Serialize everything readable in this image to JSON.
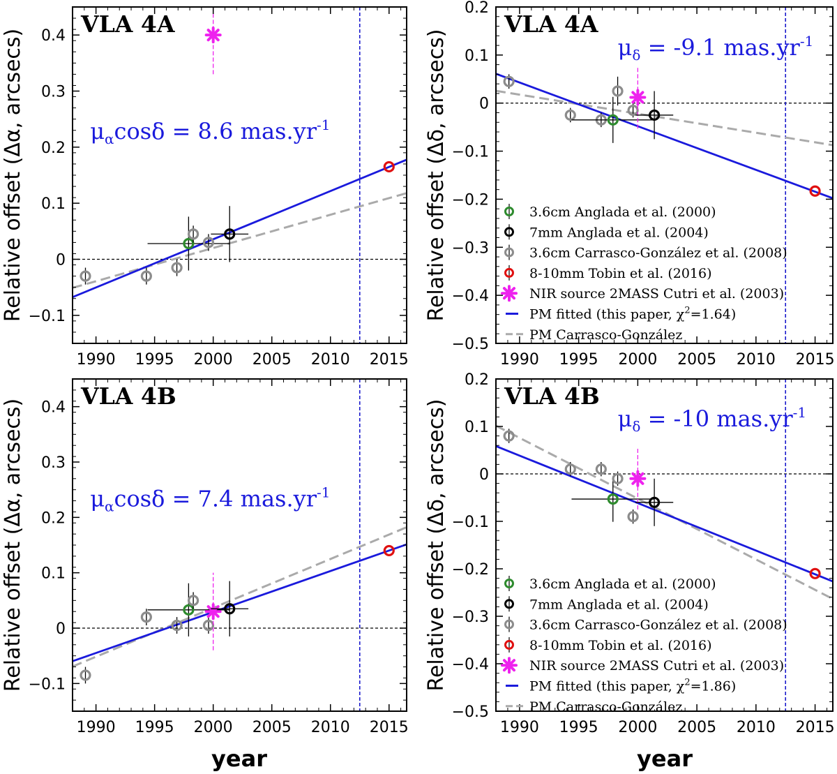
{
  "figure": {
    "shared_xlabel": "year",
    "colors": {
      "fit_line": "#1a1adc",
      "cg_line": "#aaaaaa",
      "epoch_line": "#1a1acc",
      "anglada2000": "#2e8b2e",
      "anglada2004": "#000000",
      "carrasco2008": "#8c8c8c",
      "tobin2016": "#e01010",
      "nir2mass": "#ee22ee",
      "zero_line": "#000000"
    }
  },
  "chart_data": [
    {
      "type": "scatter",
      "panel": "top-left",
      "title": "VLA 4A",
      "ylabel": "Relative offset (Δα, arcsecs)",
      "xlabel": "",
      "xlim": [
        1988,
        2016.5
      ],
      "ylim": [
        -0.15,
        0.45
      ],
      "xticks": [
        1990,
        1995,
        2000,
        2005,
        2010,
        2015
      ],
      "yticks": [
        -0.1,
        0,
        0.1,
        0.2,
        0.3,
        0.4
      ],
      "ytick_labels": [
        "−0.1",
        "0",
        "0.1",
        "0.2",
        "0.3",
        "0.4"
      ],
      "pm_label": {
        "main": "μ",
        "sub": "α",
        "rest": "cosδ = 8.6 mas.yr",
        "sup": "-1"
      },
      "pm_label_pos": [
        1989.5,
        0.215
      ],
      "fit_line": {
        "x": [
          1988,
          2016.5
        ],
        "y": [
          -0.0675,
          0.1776
        ]
      },
      "cg_line": {
        "x": [
          1988,
          2016.5
        ],
        "y": [
          -0.051,
          0.118
        ]
      },
      "epoch_line": 2012.5,
      "points": [
        {
          "series": "carrasco2008",
          "x": 1989.1,
          "y": -0.03,
          "xerr": 0,
          "yerr": 0.015
        },
        {
          "series": "carrasco2008",
          "x": 1994.3,
          "y": -0.03,
          "xerr": 0,
          "yerr": 0.015
        },
        {
          "series": "carrasco2008",
          "x": 1996.9,
          "y": -0.015,
          "xerr": 0,
          "yerr": 0.015
        },
        {
          "series": "anglada2000",
          "x": 1997.9,
          "y": 0.028,
          "xerr": 3.5,
          "yerr": 0.048
        },
        {
          "series": "carrasco2008",
          "x": 1998.3,
          "y": 0.045,
          "xerr": 0,
          "yerr": 0.015
        },
        {
          "series": "carrasco2008",
          "x": 1999.6,
          "y": 0.03,
          "xerr": 0,
          "yerr": 0.015
        },
        {
          "series": "anglada2004",
          "x": 2001.4,
          "y": 0.045,
          "xerr": 1.6,
          "yerr": 0.05
        },
        {
          "series": "tobin2016",
          "x": 2015.0,
          "y": 0.165,
          "xerr": 0,
          "yerr": 0
        },
        {
          "series": "nir2mass",
          "x": 2000.0,
          "y": 0.4,
          "xerr": 0,
          "yerr": 0.07
        }
      ]
    },
    {
      "type": "scatter",
      "panel": "top-right",
      "title": "VLA 4A",
      "ylabel": "Relative offset (Δδ, arcsecs)",
      "xlabel": "",
      "xlim": [
        1988,
        2016.5
      ],
      "ylim": [
        -0.5,
        0.2
      ],
      "xticks": [
        1990,
        1995,
        2000,
        2005,
        2010,
        2015
      ],
      "yticks": [
        -0.5,
        -0.4,
        -0.3,
        -0.2,
        -0.1,
        0,
        0.1,
        0.2
      ],
      "ytick_labels": [
        "−0.5",
        "−0.4",
        "−0.3",
        "−0.2",
        "−0.1",
        "0",
        "0.1",
        "0.2"
      ],
      "pm_label": {
        "main": "μ",
        "sub": "δ",
        "rest": " = -9.1 mas.yr",
        "sup": "-1"
      },
      "pm_label_pos": [
        1998.3,
        0.1
      ],
      "fit_line": {
        "x": [
          1988,
          2016.5
        ],
        "y": [
          0.061,
          -0.198
        ]
      },
      "cg_line": {
        "x": [
          1988,
          2016.5
        ],
        "y": [
          0.0255,
          -0.0875
        ]
      },
      "epoch_line": 2012.5,
      "points": [
        {
          "series": "carrasco2008",
          "x": 1989.1,
          "y": 0.045,
          "xerr": 0,
          "yerr": 0.015
        },
        {
          "series": "carrasco2008",
          "x": 1994.3,
          "y": -0.025,
          "xerr": 0,
          "yerr": 0.015
        },
        {
          "series": "carrasco2008",
          "x": 1996.9,
          "y": -0.035,
          "xerr": 0,
          "yerr": 0.015
        },
        {
          "series": "anglada2000",
          "x": 1997.9,
          "y": -0.035,
          "xerr": 3.5,
          "yerr": 0.048
        },
        {
          "series": "carrasco2008",
          "x": 1998.3,
          "y": 0.025,
          "xerr": 0,
          "yerr": 0.03
        },
        {
          "series": "carrasco2008",
          "x": 1999.6,
          "y": -0.015,
          "xerr": 0,
          "yerr": 0.015
        },
        {
          "series": "nir2mass",
          "x": 2000.0,
          "y": 0.012,
          "xerr": 0,
          "yerr": 0.065
        },
        {
          "series": "anglada2004",
          "x": 2001.4,
          "y": -0.025,
          "xerr": 1.6,
          "yerr": 0.05
        },
        {
          "series": "tobin2016",
          "x": 2015.0,
          "y": -0.183,
          "xerr": 0,
          "yerr": 0
        }
      ],
      "legend": [
        {
          "series": "anglada2000",
          "label": "3.6cm Anglada et al. (2000)"
        },
        {
          "series": "anglada2004",
          "label": "7mm Anglada et al. (2004)"
        },
        {
          "series": "carrasco2008",
          "label": "3.6cm Carrasco-González et al. (2008)"
        },
        {
          "series": "tobin2016",
          "label": "8-10mm Tobin et al. (2016)"
        },
        {
          "series": "nir2mass",
          "label": "NIR source 2MASS Cutri et al. (2003)"
        },
        {
          "series": "fit_line",
          "label": "PM fitted (this paper, χ",
          "sup": "2",
          "tail": "=1.64)"
        },
        {
          "series": "cg_line",
          "label": "PM Carrasco-González"
        }
      ]
    },
    {
      "type": "scatter",
      "panel": "bottom-left",
      "title": "VLA 4B",
      "ylabel": "Relative offset (Δα, arcsecs)",
      "xlabel": "year",
      "xlim": [
        1988,
        2016.5
      ],
      "ylim": [
        -0.15,
        0.45
      ],
      "xticks": [
        1990,
        1995,
        2000,
        2005,
        2010,
        2015
      ],
      "yticks": [
        -0.1,
        0,
        0.1,
        0.2,
        0.3,
        0.4
      ],
      "ytick_labels": [
        "−0.1",
        "0",
        "0.1",
        "0.2",
        "0.3",
        "0.4"
      ],
      "pm_label": {
        "main": "μ",
        "sub": "α",
        "rest": "cosδ = 7.4 mas.yr",
        "sup": "-1"
      },
      "pm_label_pos": [
        1989.5,
        0.22
      ],
      "fit_line": {
        "x": [
          1988,
          2016.5
        ],
        "y": [
          -0.0597,
          0.1512
        ]
      },
      "cg_line": {
        "x": [
          1988,
          2016.5
        ],
        "y": [
          -0.0693,
          0.1822
        ]
      },
      "epoch_line": 2012.5,
      "points": [
        {
          "series": "carrasco2008",
          "x": 1989.1,
          "y": -0.085,
          "xerr": 0,
          "yerr": 0.015
        },
        {
          "series": "carrasco2008",
          "x": 1994.3,
          "y": 0.02,
          "xerr": 0,
          "yerr": 0.015
        },
        {
          "series": "carrasco2008",
          "x": 1996.9,
          "y": 0.005,
          "xerr": 0,
          "yerr": 0.015
        },
        {
          "series": "anglada2000",
          "x": 1997.9,
          "y": 0.033,
          "xerr": 3.5,
          "yerr": 0.048
        },
        {
          "series": "carrasco2008",
          "x": 1998.3,
          "y": 0.05,
          "xerr": 0,
          "yerr": 0.015
        },
        {
          "series": "carrasco2008",
          "x": 1999.6,
          "y": 0.005,
          "xerr": 0,
          "yerr": 0.015
        },
        {
          "series": "nir2mass",
          "x": 2000.0,
          "y": 0.03,
          "xerr": 0,
          "yerr": 0.07
        },
        {
          "series": "anglada2004",
          "x": 2001.4,
          "y": 0.035,
          "xerr": 1.6,
          "yerr": 0.05
        },
        {
          "series": "tobin2016",
          "x": 2015.0,
          "y": 0.14,
          "xerr": 0,
          "yerr": 0
        }
      ]
    },
    {
      "type": "scatter",
      "panel": "bottom-right",
      "title": "VLA 4B",
      "ylabel": "Relative offset (Δδ, arcsecs)",
      "xlabel": "year",
      "xlim": [
        1988,
        2016.5
      ],
      "ylim": [
        -0.5,
        0.2
      ],
      "xticks": [
        1990,
        1995,
        2000,
        2005,
        2010,
        2015
      ],
      "yticks": [
        -0.5,
        -0.4,
        -0.3,
        -0.2,
        -0.1,
        0,
        0.1,
        0.2
      ],
      "ytick_labels": [
        "−0.5",
        "−0.4",
        "−0.3",
        "−0.2",
        "−0.1",
        "0",
        "0.1",
        "0.2"
      ],
      "pm_label": {
        "main": "μ",
        "sub": "δ",
        "rest": " = -10 mas.yr",
        "sup": "-1"
      },
      "pm_label_pos": [
        1998.3,
        0.1
      ],
      "fit_line": {
        "x": [
          1988,
          2016.5
        ],
        "y": [
          0.0585,
          -0.2265
        ]
      },
      "cg_line": {
        "x": [
          1988,
          2016.5
        ],
        "y": [
          0.1015,
          -0.2635
        ]
      },
      "epoch_line": 2012.5,
      "points": [
        {
          "series": "carrasco2008",
          "x": 1989.1,
          "y": 0.08,
          "xerr": 0,
          "yerr": 0.015
        },
        {
          "series": "carrasco2008",
          "x": 1994.3,
          "y": 0.01,
          "xerr": 0,
          "yerr": 0.015
        },
        {
          "series": "carrasco2008",
          "x": 1996.9,
          "y": 0.01,
          "xerr": 0,
          "yerr": 0.015
        },
        {
          "series": "anglada2000",
          "x": 1997.9,
          "y": -0.053,
          "xerr": 3.5,
          "yerr": 0.048
        },
        {
          "series": "carrasco2008",
          "x": 1998.3,
          "y": -0.01,
          "xerr": 0,
          "yerr": 0.015
        },
        {
          "series": "carrasco2008",
          "x": 1999.6,
          "y": -0.09,
          "xerr": 0,
          "yerr": 0.015
        },
        {
          "series": "nir2mass",
          "x": 2000.0,
          "y": -0.01,
          "xerr": 0,
          "yerr": 0.065
        },
        {
          "series": "anglada2004",
          "x": 2001.4,
          "y": -0.06,
          "xerr": 1.6,
          "yerr": 0.05
        },
        {
          "series": "tobin2016",
          "x": 2015.0,
          "y": -0.21,
          "xerr": 0,
          "yerr": 0
        }
      ],
      "legend": [
        {
          "series": "anglada2000",
          "label": "3.6cm Anglada et al. (2000)"
        },
        {
          "series": "anglada2004",
          "label": "7mm  Anglada et al. (2004)"
        },
        {
          "series": "carrasco2008",
          "label": "3.6cm Carrasco-González et al. (2008)"
        },
        {
          "series": "tobin2016",
          "label": "8-10mm Tobin et al. (2016)"
        },
        {
          "series": "nir2mass",
          "label": "NIR source 2MASS Cutri et al. (2003)"
        },
        {
          "series": "fit_line",
          "label": "PM fitted (this paper, χ",
          "sup": "2",
          "tail": "=1.86)"
        },
        {
          "series": "cg_line",
          "label": "PM Carrasco-González"
        }
      ]
    }
  ]
}
